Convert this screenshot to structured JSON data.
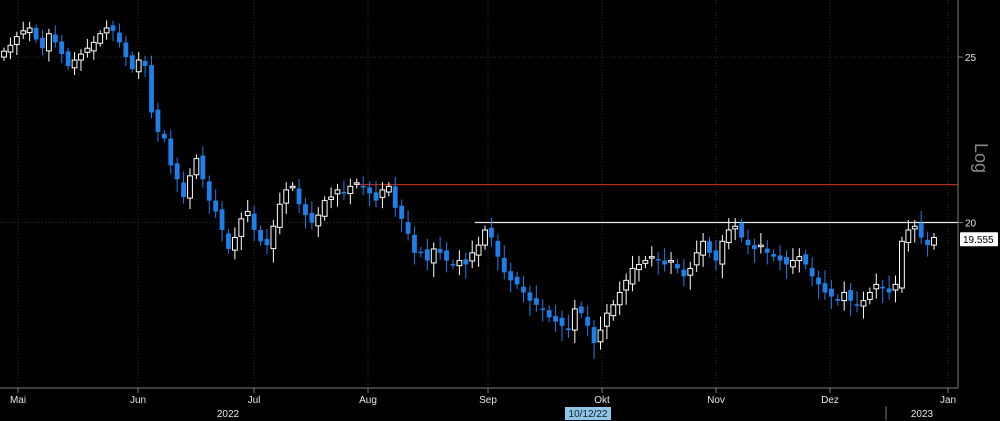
{
  "chart_data": {
    "type": "candlestick",
    "scale": "log",
    "scale_label": "Log",
    "y_ticks": [
      25,
      20
    ],
    "last_price": 19.555,
    "last_price_label": "19.555",
    "cursor_date_label": "10/12/22",
    "resistance_line": 21.05,
    "support_line": 20.0,
    "months": [
      "Mai",
      "Jun",
      "Jul",
      "Aug",
      "Sep",
      "Okt",
      "Nov",
      "Dez",
      "Jan"
    ],
    "years": [
      "2022",
      "2023"
    ],
    "colors": {
      "up": "#ffffff",
      "down": "#1f7fe8",
      "grid": "#2e2e2e",
      "resistance": "#b5281c",
      "support": "#e8e8e8",
      "axis": "#7a7a7a",
      "cursor_bg": "#8ec6ea",
      "last_bg": "#ffffff"
    },
    "closes": [
      25.2,
      25.4,
      25.7,
      25.9,
      26.0,
      25.6,
      25.3,
      25.8,
      25.5,
      25.1,
      24.7,
      24.9,
      25.1,
      25.3,
      25.5,
      25.8,
      26.0,
      25.9,
      25.5,
      25.0,
      24.6,
      24.9,
      24.7,
      23.2,
      22.6,
      22.4,
      21.6,
      21.2,
      20.7,
      21.3,
      21.8,
      21.2,
      20.6,
      20.3,
      19.8,
      19.3,
      19.6,
      20.1,
      20.3,
      19.8,
      19.5,
      19.4,
      19.9,
      20.5,
      20.9,
      21.0,
      20.5,
      20.2,
      20.0,
      20.2,
      20.6,
      20.7,
      20.9,
      20.8,
      21.0,
      21.1,
      21.0,
      20.8,
      20.6,
      20.9,
      21.0,
      20.4,
      20.1,
      19.7,
      19.2,
      19.2,
      19.0,
      19.3,
      19.2,
      19.0,
      18.9,
      19.0,
      18.9,
      19.2,
      19.4,
      19.8,
      19.6,
      19.1,
      18.7,
      18.5,
      18.4,
      18.2,
      18.0,
      17.9,
      17.8,
      17.6,
      17.5,
      17.4,
      17.3,
      17.8,
      17.7,
      17.4,
      17.0,
      17.3,
      17.7,
      17.9,
      18.2,
      18.5,
      18.8,
      18.9,
      19.0,
      19.1,
      19.0,
      18.9,
      19.0,
      18.8,
      18.6,
      18.8,
      19.2,
      19.5,
      19.2,
      19.0,
      19.5,
      19.8,
      19.9,
      19.6,
      19.4,
      19.3,
      19.4,
      19.2,
      19.1,
      19.0,
      18.9,
      19.0,
      19.1,
      18.9,
      18.6,
      18.4,
      18.2,
      18.1,
      18.0,
      18.2,
      18.0,
      17.9,
      18.0,
      18.2,
      18.4,
      18.3,
      18.2,
      18.4,
      19.5,
      19.8,
      19.9,
      19.6,
      19.4,
      19.6
    ]
  },
  "ui": {
    "x_axis_label": "",
    "y_axis_label": ""
  }
}
